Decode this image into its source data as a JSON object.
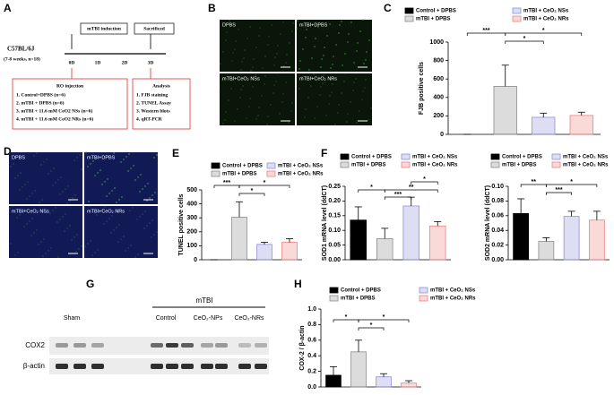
{
  "panel_labels": [
    "A",
    "B",
    "C",
    "D",
    "E",
    "F",
    "G",
    "H"
  ],
  "diagram": {
    "induction": "mTBI induction",
    "sacrificed": "Sacrificed",
    "strain": "C57BL/6J",
    "cohort": "(7-8 weeks, n=18)",
    "days": [
      "0D",
      "1D",
      "2D",
      "3D"
    ],
    "injection_title": "RO injection",
    "injection_groups": [
      "1. Control+DPBS (n=6)",
      "2. mTBI + DPBS (n=6)",
      "3. mTBI + 11.6 mM CeO2 NSs (n=6)",
      "4. mTBI + 11.6 mM CeO2 NRs (n=6)"
    ],
    "analysis_title": "Analysis",
    "analysis_items": [
      "1. FJB staining",
      "2. TUNEL Assay",
      "3. Western blots",
      "4. qRT-PCR"
    ]
  },
  "images_b": [
    "DPBS",
    "mTBI+DPBS",
    "mTBI+CeO₂ NSs",
    "mTBI+CeO₂ NRs"
  ],
  "images_d": [
    "DPBS",
    "mTBI+DPBS",
    "mTBI+CeO₂ NSs",
    "mTBI+CeO₂ NRs"
  ],
  "western_blot": {
    "header": "mTBI",
    "groups": [
      "Sham",
      "Control",
      "CeO₂-NPs",
      "CeO₂-NRs"
    ],
    "rows": [
      "COX2",
      "β-actin"
    ]
  },
  "chart_data": [
    {
      "type": "bar",
      "ylabel": "FJB positive cells",
      "ylim": [
        0,
        1000
      ],
      "yticks": [
        0,
        200,
        400,
        600,
        800,
        1000
      ],
      "series": [
        {
          "name": "Control + DPBS",
          "color": "#000000",
          "values": [
            0
          ],
          "errors": [
            0
          ]
        },
        {
          "name": "mTBI + DPBS",
          "color": "#8c8c8c",
          "values": [
            520
          ],
          "errors": [
            230
          ]
        },
        {
          "name": "mTBI + CeO₂ NSs",
          "color": "#8f8fdc",
          "values": [
            185
          ],
          "errors": [
            45
          ]
        },
        {
          "name": "mTBI + CeO₂ NRs",
          "color": "#f08080",
          "values": [
            205
          ],
          "errors": [
            35
          ]
        }
      ],
      "annotations": [
        "***",
        "*",
        "*"
      ]
    },
    {
      "type": "bar",
      "ylabel": "TUNEL positive  cells",
      "ylim": [
        0,
        500
      ],
      "yticks": [
        0,
        100,
        200,
        300,
        400,
        500
      ],
      "series": [
        {
          "name": "Control + DPBS",
          "color": "#000000",
          "values": [
            0
          ],
          "errors": [
            0
          ]
        },
        {
          "name": "mTBI + DPBS",
          "color": "#8c8c8c",
          "values": [
            305
          ],
          "errors": [
            110
          ]
        },
        {
          "name": "mTBI + CeO₂ NSs",
          "color": "#8f8fdc",
          "values": [
            110
          ],
          "errors": [
            15
          ]
        },
        {
          "name": "mTBI + CeO₂ NRs",
          "color": "#f08080",
          "values": [
            125
          ],
          "errors": [
            25
          ]
        }
      ],
      "annotations": [
        "***",
        "*",
        "*"
      ]
    },
    {
      "type": "bar",
      "ylabel": "SOD1  mRNA level (ddCT)",
      "ylim": [
        0,
        0.25
      ],
      "yticks": [
        {
          "value": 0,
          "label": "0.00"
        },
        {
          "value": 0.05,
          "label": "0.05"
        },
        {
          "value": 0.1,
          "label": "0.10"
        },
        {
          "value": 0.15,
          "label": "0.15"
        },
        {
          "value": 0.2,
          "label": "0.20"
        },
        {
          "value": 0.25,
          "label": "0.25"
        }
      ],
      "series": [
        {
          "name": "Control + DPBS",
          "color": "#000000",
          "values": [
            0.135
          ],
          "errors": [
            0.045
          ]
        },
        {
          "name": "mTBI + DPBS",
          "color": "#8c8c8c",
          "values": [
            0.072
          ],
          "errors": [
            0.035
          ]
        },
        {
          "name": "mTBI + CeO₂ NSs",
          "color": "#8f8fdc",
          "values": [
            0.183
          ],
          "errors": [
            0.03
          ]
        },
        {
          "name": "mTBI + CeO₂ NRs",
          "color": "#f08080",
          "values": [
            0.115
          ],
          "errors": [
            0.015
          ]
        }
      ],
      "annotations": [
        "*",
        "***",
        "*",
        "**"
      ]
    },
    {
      "type": "bar",
      "ylabel": "SOD2  mRNA level (ddCT)",
      "ylim": [
        0,
        0.1
      ],
      "yticks": [
        {
          "value": 0,
          "label": "0.00"
        },
        {
          "value": 0.02,
          "label": "0.02"
        },
        {
          "value": 0.04,
          "label": "0.04"
        },
        {
          "value": 0.06,
          "label": "0.06"
        },
        {
          "value": 0.08,
          "label": "0.08"
        },
        {
          "value": 0.1,
          "label": "0.10"
        }
      ],
      "series": [
        {
          "name": "Control + DPBS",
          "color": "#000000",
          "values": [
            0.063
          ],
          "errors": [
            0.02
          ]
        },
        {
          "name": "mTBI + DPBS",
          "color": "#8c8c8c",
          "values": [
            0.025
          ],
          "errors": [
            0.005
          ]
        },
        {
          "name": "mTBI + CeO₂ NSs",
          "color": "#8f8fdc",
          "values": [
            0.059
          ],
          "errors": [
            0.007
          ]
        },
        {
          "name": "mTBI + CeO₂ NRs",
          "color": "#f08080",
          "values": [
            0.054
          ],
          "errors": [
            0.012
          ]
        }
      ],
      "annotations": [
        "**",
        "*",
        "***"
      ]
    },
    {
      "type": "bar",
      "ylabel": "COX-2 / β-actin",
      "ylim": [
        0,
        1.0
      ],
      "yticks": [
        {
          "value": 0,
          "label": "0.0"
        },
        {
          "value": 0.2,
          "label": "0.2"
        },
        {
          "value": 0.4,
          "label": "0.4"
        },
        {
          "value": 0.6,
          "label": "0.6"
        },
        {
          "value": 0.8,
          "label": "0.8"
        },
        {
          "value": 1.0,
          "label": "1.0"
        }
      ],
      "series": [
        {
          "name": "Control + DPBS",
          "color": "#000000",
          "values": [
            0.15
          ],
          "errors": [
            0.11
          ]
        },
        {
          "name": "mTBI + DPBS",
          "color": "#8c8c8c",
          "values": [
            0.45
          ],
          "errors": [
            0.15
          ]
        },
        {
          "name": "mTBI + CeO₂ NSs",
          "color": "#8f8fdc",
          "values": [
            0.13
          ],
          "errors": [
            0.04
          ]
        },
        {
          "name": "mTBI + CeO₂ NRs",
          "color": "#f08080",
          "values": [
            0.05
          ],
          "errors": [
            0.03
          ]
        }
      ],
      "annotations": [
        "*",
        "*",
        "*"
      ]
    }
  ]
}
